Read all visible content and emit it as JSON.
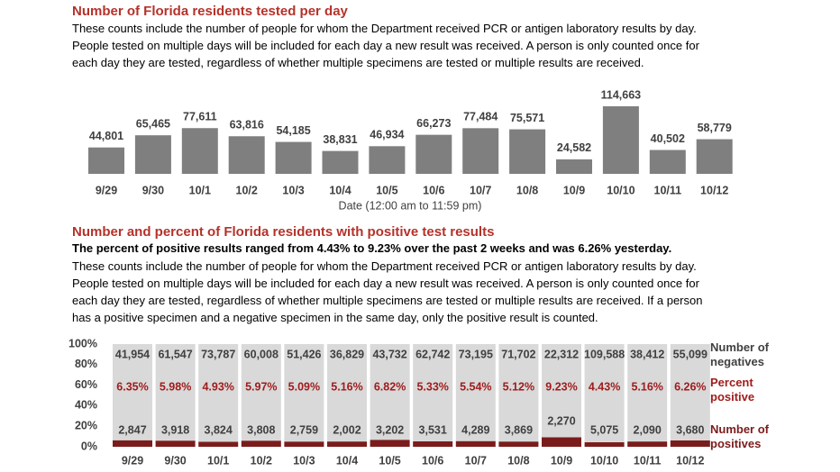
{
  "chart_data": [
    {
      "type": "bar",
      "title": "Number of Florida residents tested per day",
      "description": "These counts include the number of people for whom the Department received PCR or antigen laboratory results by day. People tested on multiple days will be included for each day a new result was received. A person is only counted once for each day they are tested, regardless of whether multiple specimens are tested or multiple results are received.",
      "xlabel": "Date (12:00 am to 11:59 pm)",
      "categories": [
        "9/29",
        "9/30",
        "10/1",
        "10/2",
        "10/3",
        "10/4",
        "10/5",
        "10/6",
        "10/7",
        "10/8",
        "10/9",
        "10/10",
        "10/11",
        "10/12"
      ],
      "values": [
        44801,
        65465,
        77611,
        63816,
        54185,
        38831,
        46934,
        66273,
        77484,
        75571,
        24582,
        114663,
        40502,
        58779
      ],
      "value_labels": [
        "44,801",
        "65,465",
        "77,611",
        "63,816",
        "54,185",
        "38,831",
        "46,934",
        "66,273",
        "77,484",
        "75,571",
        "24,582",
        "114,663",
        "40,502",
        "58,779"
      ],
      "color": "#7f7f7f"
    },
    {
      "type": "stacked100",
      "title": "Number and percent of Florida residents with positive test results",
      "subtitle": "The percent of positive results ranged from 4.43% to 9.23% over the past 2 weeks and was 6.26% yesterday.",
      "description": "These counts include the number of people for whom the Department received PCR or antigen laboratory results by day. People tested on multiple days will be included for each day a new result was received. A person is only counted once for each day they are tested, regardless of whether multiple specimens are tested or multiple results are received. If a person has a positive specimen and a negative specimen in the same day, only the positive result is counted.",
      "categories": [
        "9/29",
        "9/30",
        "10/1",
        "10/2",
        "10/3",
        "10/4",
        "10/5",
        "10/6",
        "10/7",
        "10/8",
        "10/9",
        "10/10",
        "10/11",
        "10/12"
      ],
      "ylim": [
        0,
        100
      ],
      "yticks": [
        {
          "value": 0,
          "label": "0%"
        },
        {
          "value": 20,
          "label": "20%"
        },
        {
          "value": 40,
          "label": "40%"
        },
        {
          "value": 60,
          "label": "60%"
        },
        {
          "value": 80,
          "label": "80%"
        },
        {
          "value": 100,
          "label": "100%"
        }
      ],
      "series": [
        {
          "name": "Number of negatives",
          "color": "#d9d9d9",
          "label_color": "#404040",
          "values": [
            41954,
            61547,
            73787,
            60008,
            51426,
            36829,
            43732,
            62742,
            73195,
            71702,
            22312,
            109588,
            38412,
            55099
          ],
          "value_labels": [
            "41,954",
            "61,547",
            "73,787",
            "60,008",
            "51,426",
            "36,829",
            "43,732",
            "62,742",
            "73,195",
            "71,702",
            "22,312",
            "109,588",
            "38,412",
            "55,099"
          ]
        },
        {
          "name": "Percent positive",
          "color": "#a01c1c",
          "values": [
            6.35,
            5.98,
            4.93,
            5.97,
            5.09,
            5.16,
            6.82,
            5.33,
            5.54,
            5.12,
            9.23,
            4.43,
            5.16,
            6.26
          ],
          "value_labels": [
            "6.35%",
            "5.98%",
            "4.93%",
            "5.97%",
            "5.09%",
            "5.16%",
            "6.82%",
            "5.33%",
            "5.54%",
            "5.12%",
            "9.23%",
            "4.43%",
            "5.16%",
            "6.26%"
          ]
        },
        {
          "name": "Number of positives",
          "color": "#7b1c1c",
          "label_color": "#404040",
          "values": [
            2847,
            3918,
            3824,
            3808,
            2759,
            2002,
            3202,
            3531,
            4289,
            3869,
            2270,
            5075,
            2090,
            3680
          ],
          "value_labels": [
            "2,847",
            "3,918",
            "3,824",
            "3,808",
            "2,759",
            "2,002",
            "3,202",
            "3,531",
            "4,289",
            "3,869",
            "2,270",
            "5,075",
            "2,090",
            "3,680"
          ]
        }
      ]
    }
  ]
}
